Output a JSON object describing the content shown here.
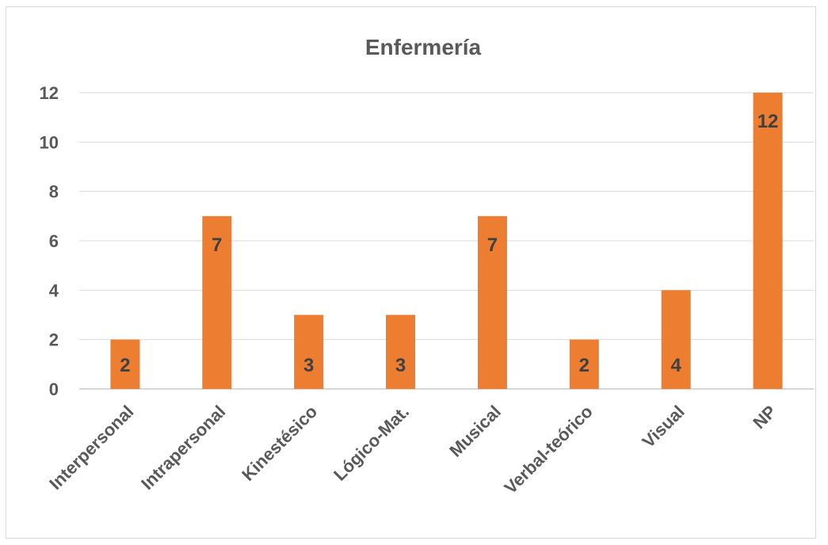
{
  "chart_data": {
    "type": "bar",
    "title": "Enfermería",
    "categories": [
      "Interpersonal",
      "Intrapersonal",
      "Kinestésico",
      "Lógico-Mat.",
      "Musical",
      "Verbal-teórico",
      "Visual",
      "NP"
    ],
    "values": [
      2,
      7,
      3,
      3,
      7,
      2,
      4,
      12
    ],
    "data_labels": [
      "2",
      "7",
      "3",
      "3",
      "7",
      "2",
      "4",
      "12"
    ],
    "ylim": [
      0,
      12
    ],
    "yticks": [
      "0",
      "2",
      "4",
      "6",
      "8",
      "10",
      "12"
    ],
    "xlabel": "",
    "ylabel": "",
    "grid": true,
    "legend": "none",
    "bar_color": "#ed7d31"
  }
}
